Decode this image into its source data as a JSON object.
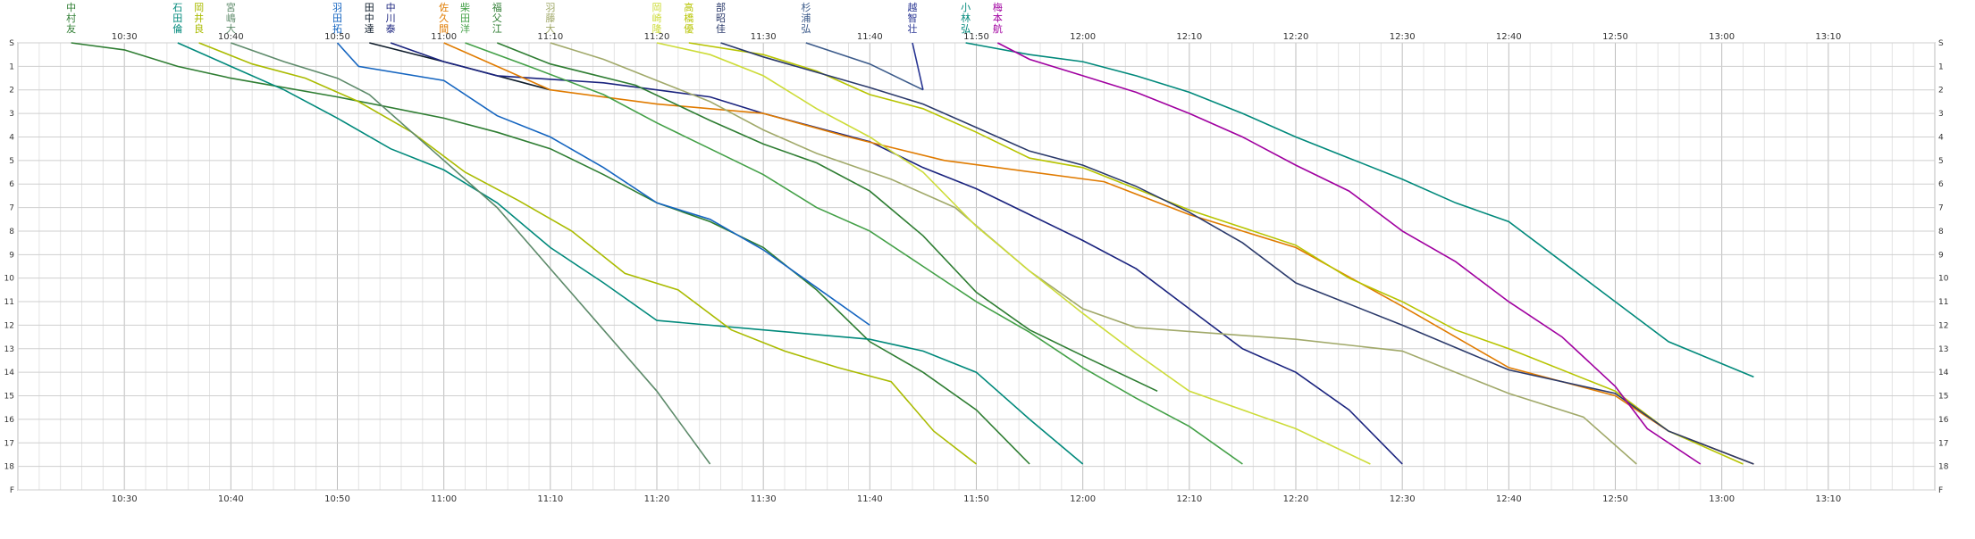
{
  "chart_data": {
    "type": "line",
    "x_unit": "time",
    "xlim": [
      "10:20",
      "13:20"
    ],
    "x_ticks": [
      "10:30",
      "10:40",
      "10:50",
      "11:00",
      "11:10",
      "11:20",
      "11:30",
      "11:40",
      "11:50",
      "12:00",
      "12:10",
      "12:20",
      "12:30",
      "12:40",
      "12:50",
      "13:00",
      "13:10"
    ],
    "y_ticks": [
      "S",
      "1",
      "2",
      "3",
      "4",
      "5",
      "6",
      "7",
      "8",
      "9",
      "10",
      "11",
      "12",
      "13",
      "14",
      "15",
      "16",
      "17",
      "18",
      "F"
    ],
    "grid": true,
    "series": [
      {
        "name": "中村友",
        "color": "#2e7d32",
        "start": "10:25",
        "end": "11:55",
        "points": [
          [
            "10:25",
            0
          ],
          [
            "10:30",
            0.3
          ],
          [
            "10:35",
            1
          ],
          [
            "10:40",
            1.5
          ],
          [
            "10:50",
            2.3
          ],
          [
            "11:00",
            3.2
          ],
          [
            "11:05",
            3.8
          ],
          [
            "11:10",
            4.5
          ],
          [
            "11:15",
            5.6
          ],
          [
            "11:20",
            6.8
          ],
          [
            "11:25",
            7.6
          ],
          [
            "11:30",
            8.7
          ],
          [
            "11:35",
            10.5
          ],
          [
            "11:40",
            12.7
          ],
          [
            "11:45",
            14
          ],
          [
            "11:50",
            15.6
          ],
          [
            "11:55",
            17.9
          ]
        ]
      },
      {
        "name": "石田倫",
        "color": "#00897b",
        "start": "10:35",
        "end": "12:00",
        "points": [
          [
            "10:35",
            0
          ],
          [
            "10:40",
            1
          ],
          [
            "10:45",
            2
          ],
          [
            "10:50",
            3.2
          ],
          [
            "10:55",
            4.5
          ],
          [
            "11:00",
            5.4
          ],
          [
            "11:05",
            6.8
          ],
          [
            "11:10",
            8.7
          ],
          [
            "11:15",
            10.2
          ],
          [
            "11:20",
            11.8
          ],
          [
            "11:30",
            12.2
          ],
          [
            "11:40",
            12.6
          ],
          [
            "11:45",
            13.1
          ],
          [
            "11:50",
            14
          ],
          [
            "11:55",
            16
          ],
          [
            "12:00",
            17.9
          ]
        ]
      },
      {
        "name": "岡井良",
        "color": "#aabb00",
        "start": "10:37",
        "end": "11:50",
        "points": [
          [
            "10:37",
            0
          ],
          [
            "10:42",
            0.9
          ],
          [
            "10:47",
            1.5
          ],
          [
            "10:52",
            2.5
          ],
          [
            "10:57",
            3.8
          ],
          [
            "11:02",
            5.5
          ],
          [
            "11:07",
            6.7
          ],
          [
            "11:12",
            8
          ],
          [
            "11:17",
            9.8
          ],
          [
            "11:22",
            10.5
          ],
          [
            "11:27",
            12.2
          ],
          [
            "11:32",
            13.1
          ],
          [
            "11:37",
            13.8
          ],
          [
            "11:42",
            14.4
          ],
          [
            "11:46",
            16.5
          ],
          [
            "11:50",
            17.9
          ]
        ]
      },
      {
        "name": "宮嶋大",
        "color": "#5d8a6a",
        "start": "10:40",
        "end": "11:25",
        "points": [
          [
            "10:40",
            0
          ],
          [
            "10:45",
            0.8
          ],
          [
            "10:50",
            1.5
          ],
          [
            "10:53",
            2.2
          ],
          [
            "10:57",
            3.8
          ],
          [
            "11:00",
            5
          ],
          [
            "11:05",
            7
          ],
          [
            "11:10",
            9.6
          ],
          [
            "11:15",
            12.2
          ],
          [
            "11:20",
            14.8
          ],
          [
            "11:25",
            17.9
          ]
        ]
      },
      {
        "name": "羽田拓",
        "color": "#1565c0",
        "start": "10:50",
        "end": "11:40",
        "points": [
          [
            "10:50",
            0
          ],
          [
            "10:52",
            1
          ],
          [
            "11:00",
            1.6
          ],
          [
            "11:05",
            3.1
          ],
          [
            "11:10",
            4
          ],
          [
            "11:15",
            5.3
          ],
          [
            "11:20",
            6.8
          ],
          [
            "11:25",
            7.5
          ],
          [
            "11:30",
            8.8
          ],
          [
            "11:35",
            10.4
          ],
          [
            "11:40",
            12
          ]
        ]
      },
      {
        "name": "田中達",
        "color": "#0d1b2a",
        "start": "10:53",
        "end": "11:10",
        "points": [
          [
            "10:53",
            0
          ],
          [
            "11:00",
            0.8
          ],
          [
            "11:10",
            2
          ]
        ]
      },
      {
        "name": "中川泰",
        "color": "#1a237e",
        "start": "10:55",
        "end": "12:30",
        "points": [
          [
            "10:55",
            0
          ],
          [
            "11:00",
            0.8
          ],
          [
            "11:05",
            1.4
          ],
          [
            "11:15",
            1.7
          ],
          [
            "11:25",
            2.3
          ],
          [
            "11:30",
            3
          ],
          [
            "11:40",
            4.2
          ],
          [
            "11:45",
            5.3
          ],
          [
            "11:50",
            6.2
          ],
          [
            "11:55",
            7.3
          ],
          [
            "12:00",
            8.4
          ],
          [
            "12:05",
            9.6
          ],
          [
            "12:10",
            11.3
          ],
          [
            "12:15",
            13
          ],
          [
            "12:20",
            14
          ],
          [
            "12:25",
            15.6
          ],
          [
            "12:30",
            17.9
          ]
        ]
      },
      {
        "name": "佐久間",
        "color": "#e07b00",
        "start": "11:00",
        "end": "13:03",
        "points": [
          [
            "11:00",
            0
          ],
          [
            "11:05",
            1
          ],
          [
            "11:10",
            2
          ],
          [
            "11:20",
            2.6
          ],
          [
            "11:30",
            3
          ],
          [
            "11:38",
            4
          ],
          [
            "11:47",
            5
          ],
          [
            "12:02",
            5.9
          ],
          [
            "12:10",
            7.3
          ],
          [
            "12:20",
            8.7
          ],
          [
            "12:30",
            11.2
          ],
          [
            "12:40",
            13.8
          ],
          [
            "12:50",
            15
          ],
          [
            "12:55",
            16.5
          ],
          [
            "13:03",
            17.9
          ]
        ]
      },
      {
        "name": "柴田洋",
        "color": "#43a047",
        "start": "11:02",
        "end": "12:15",
        "points": [
          [
            "11:02",
            0
          ],
          [
            "11:08",
            1
          ],
          [
            "11:15",
            2.2
          ],
          [
            "11:20",
            3.4
          ],
          [
            "11:25",
            4.5
          ],
          [
            "11:30",
            5.6
          ],
          [
            "11:35",
            7
          ],
          [
            "11:40",
            8
          ],
          [
            "11:45",
            9.5
          ],
          [
            "11:50",
            11
          ],
          [
            "11:55",
            12.3
          ],
          [
            "12:00",
            13.8
          ],
          [
            "12:05",
            15.1
          ],
          [
            "12:10",
            16.3
          ],
          [
            "12:15",
            17.9
          ]
        ]
      },
      {
        "name": "福父江",
        "color": "#2e7d32",
        "start": "11:05",
        "end": "12:07",
        "points": [
          [
            "11:05",
            0
          ],
          [
            "11:10",
            0.9
          ],
          [
            "11:18",
            1.8
          ],
          [
            "11:25",
            3.3
          ],
          [
            "11:30",
            4.3
          ],
          [
            "11:35",
            5.1
          ],
          [
            "11:40",
            6.3
          ],
          [
            "11:45",
            8.2
          ],
          [
            "11:50",
            10.6
          ],
          [
            "11:55",
            12.2
          ],
          [
            "12:00",
            13.3
          ],
          [
            "12:07",
            14.8
          ]
        ]
      },
      {
        "name": "羽藤大",
        "color": "#a1a96a",
        "start": "11:10",
        "end": "12:52",
        "points": [
          [
            "11:10",
            0
          ],
          [
            "11:15",
            0.7
          ],
          [
            "11:20",
            1.6
          ],
          [
            "11:25",
            2.5
          ],
          [
            "11:30",
            3.7
          ],
          [
            "11:35",
            4.7
          ],
          [
            "11:42",
            5.8
          ],
          [
            "11:48",
            7
          ],
          [
            "11:55",
            9.7
          ],
          [
            "12:00",
            11.3
          ],
          [
            "12:05",
            12.1
          ],
          [
            "12:20",
            12.6
          ],
          [
            "12:30",
            13.1
          ],
          [
            "12:35",
            14
          ],
          [
            "12:40",
            14.9
          ],
          [
            "12:47",
            15.9
          ],
          [
            "12:52",
            17.9
          ]
        ]
      },
      {
        "name": "岡崎隆",
        "color": "#cddc39",
        "start": "11:20",
        "end": "12:27",
        "points": [
          [
            "11:20",
            0
          ],
          [
            "11:25",
            0.5
          ],
          [
            "11:30",
            1.4
          ],
          [
            "11:35",
            2.8
          ],
          [
            "11:40",
            4
          ],
          [
            "11:45",
            5.5
          ],
          [
            "11:50",
            7.8
          ],
          [
            "11:55",
            9.7
          ],
          [
            "12:00",
            11.5
          ],
          [
            "12:05",
            13.2
          ],
          [
            "12:10",
            14.8
          ],
          [
            "12:20",
            16.4
          ],
          [
            "12:27",
            17.9
          ]
        ]
      },
      {
        "name": "高橋優",
        "color": "#b7c400",
        "start": "11:23",
        "end": "13:02",
        "points": [
          [
            "11:23",
            0
          ],
          [
            "11:30",
            0.5
          ],
          [
            "11:35",
            1.2
          ],
          [
            "11:40",
            2.2
          ],
          [
            "11:45",
            2.8
          ],
          [
            "11:50",
            3.8
          ],
          [
            "11:55",
            4.9
          ],
          [
            "12:00",
            5.3
          ],
          [
            "12:05",
            6.2
          ],
          [
            "12:10",
            7.1
          ],
          [
            "12:20",
            8.6
          ],
          [
            "12:25",
            10
          ],
          [
            "12:30",
            11
          ],
          [
            "12:35",
            12.2
          ],
          [
            "12:40",
            13
          ],
          [
            "12:50",
            14.8
          ],
          [
            "12:55",
            16.5
          ],
          [
            "13:02",
            17.9
          ]
        ]
      },
      {
        "name": "部昭佳",
        "color": "#2b3a6b",
        "start": "11:26",
        "end": "13:03",
        "points": [
          [
            "11:26",
            0
          ],
          [
            "11:30",
            0.6
          ],
          [
            "11:40",
            1.9
          ],
          [
            "11:45",
            2.6
          ],
          [
            "11:50",
            3.6
          ],
          [
            "11:55",
            4.6
          ],
          [
            "12:00",
            5.2
          ],
          [
            "12:05",
            6.1
          ],
          [
            "12:10",
            7.2
          ],
          [
            "12:15",
            8.5
          ],
          [
            "12:20",
            10.2
          ],
          [
            "12:30",
            12
          ],
          [
            "12:40",
            13.9
          ],
          [
            "12:50",
            14.9
          ],
          [
            "12:55",
            16.5
          ],
          [
            "13:03",
            17.9
          ]
        ]
      },
      {
        "name": "杉浦弘",
        "color": "#3b5a8a",
        "start": "11:34",
        "end": "11:45",
        "points": [
          [
            "11:34",
            0
          ],
          [
            "11:40",
            0.9
          ],
          [
            "11:45",
            2
          ]
        ]
      },
      {
        "name": "越智壮",
        "color": "#283593",
        "start": "11:44",
        "end": "11:45",
        "points": [
          [
            "11:44",
            0
          ],
          [
            "11:45",
            2
          ]
        ]
      },
      {
        "name": "小林弘",
        "color": "#00897b",
        "start": "11:49",
        "end": "13:03",
        "points": [
          [
            "11:49",
            0
          ],
          [
            "11:55",
            0.5
          ],
          [
            "12:00",
            0.8
          ],
          [
            "12:05",
            1.4
          ],
          [
            "12:10",
            2.1
          ],
          [
            "12:15",
            3
          ],
          [
            "12:20",
            4
          ],
          [
            "12:25",
            4.9
          ],
          [
            "12:30",
            5.8
          ],
          [
            "12:35",
            6.8
          ],
          [
            "12:40",
            7.6
          ],
          [
            "12:45",
            9.3
          ],
          [
            "12:50",
            11
          ],
          [
            "12:55",
            12.7
          ],
          [
            "13:03",
            14.2
          ]
        ]
      },
      {
        "name": "梅本航",
        "color": "#a000a0",
        "start": "11:52",
        "end": "12:58",
        "points": [
          [
            "11:52",
            0
          ],
          [
            "11:55",
            0.7
          ],
          [
            "12:00",
            1.4
          ],
          [
            "12:05",
            2.1
          ],
          [
            "12:10",
            3
          ],
          [
            "12:15",
            4
          ],
          [
            "12:20",
            5.2
          ],
          [
            "12:25",
            6.3
          ],
          [
            "12:30",
            8
          ],
          [
            "12:35",
            9.3
          ],
          [
            "12:40",
            11
          ],
          [
            "12:45",
            12.5
          ],
          [
            "12:50",
            14.6
          ],
          [
            "12:53",
            16.4
          ],
          [
            "12:58",
            17.9
          ]
        ]
      }
    ]
  }
}
